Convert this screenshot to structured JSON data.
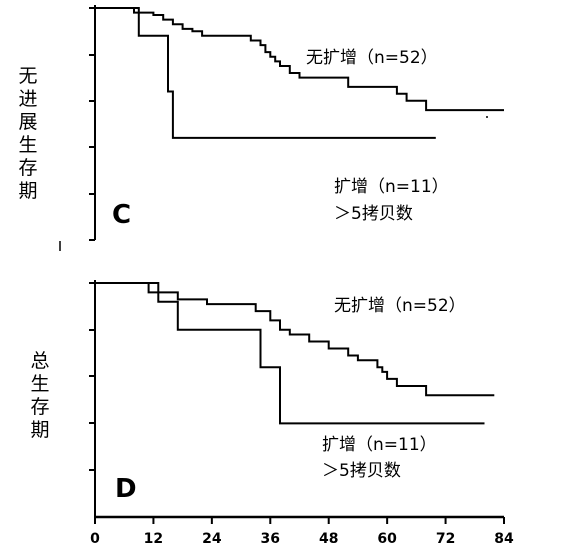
{
  "chart_data": [
    {
      "type": "line",
      "panel_letter": "C",
      "ylabel": "无进展生存期",
      "xlim": [
        0,
        84
      ],
      "ylim": [
        0,
        1
      ],
      "series": [
        {
          "name": "无扩增（n=52）",
          "x": [
            0,
            6,
            8,
            12,
            14,
            16,
            18,
            20,
            22,
            30,
            32,
            34,
            35,
            36,
            37,
            38,
            40,
            42,
            46,
            52,
            60,
            62,
            64,
            68,
            84
          ],
          "y": [
            1.0,
            1.0,
            0.98,
            0.97,
            0.95,
            0.93,
            0.91,
            0.9,
            0.88,
            0.88,
            0.86,
            0.84,
            0.81,
            0.79,
            0.77,
            0.75,
            0.72,
            0.7,
            0.7,
            0.66,
            0.66,
            0.63,
            0.6,
            0.56,
            0.56
          ],
          "label_lines": [
            "无扩增（n=52）"
          ]
        },
        {
          "name": "扩增（n=11）",
          "x": [
            0,
            8,
            9,
            14,
            15,
            16,
            70
          ],
          "y": [
            1.0,
            1.0,
            0.88,
            0.88,
            0.64,
            0.44,
            0.44
          ],
          "label_lines": [
            "扩增（n=11）",
            "＞5拷贝数"
          ]
        }
      ]
    },
    {
      "type": "line",
      "panel_letter": "D",
      "ylabel": "总生存期",
      "xlim": [
        0,
        84
      ],
      "ylim": [
        0,
        1
      ],
      "xticks": [
        0,
        12,
        24,
        36,
        48,
        60,
        72,
        84
      ],
      "series": [
        {
          "name": "无扩增（n=52）",
          "x": [
            0,
            10,
            11,
            17,
            23,
            33,
            36,
            38,
            40,
            44,
            48,
            52,
            54,
            58,
            59,
            60,
            62,
            68,
            82
          ],
          "y": [
            1.0,
            1.0,
            0.96,
            0.93,
            0.91,
            0.88,
            0.84,
            0.8,
            0.78,
            0.75,
            0.72,
            0.69,
            0.67,
            0.64,
            0.62,
            0.59,
            0.56,
            0.52,
            0.52
          ],
          "label_lines": [
            "无扩增（n=52）"
          ]
        },
        {
          "name": "扩增（n=11）",
          "x": [
            0,
            10,
            13,
            17,
            34,
            38,
            80
          ],
          "y": [
            1.0,
            1.0,
            0.92,
            0.8,
            0.64,
            0.4,
            0.4
          ],
          "label_lines": [
            "扩增（n=11）",
            "＞5拷贝数"
          ]
        }
      ]
    }
  ]
}
